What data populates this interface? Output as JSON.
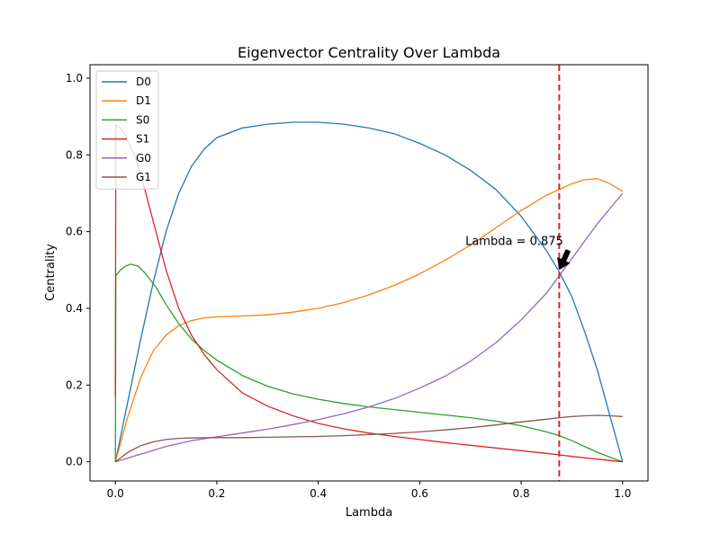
{
  "chart_data": {
    "type": "line",
    "title": "Eigenvector Centrality Over Lambda",
    "xlabel": "Lambda",
    "ylabel": "Centrality",
    "xlim": [
      -0.05,
      1.05
    ],
    "ylim": [
      -0.05,
      1.035
    ],
    "x_ticks": [
      0.0,
      0.2,
      0.4,
      0.6,
      0.8,
      1.0
    ],
    "x_tick_labels": [
      "0.0",
      "0.2",
      "0.4",
      "0.6",
      "0.8",
      "1.0"
    ],
    "y_ticks": [
      0.0,
      0.2,
      0.4,
      0.6,
      0.8,
      1.0
    ],
    "y_tick_labels": [
      "0.0",
      "0.2",
      "0.4",
      "0.6",
      "0.8",
      "1.0"
    ],
    "grid": false,
    "legend_position": "top-left",
    "vline": {
      "x": 0.875,
      "color": "#d62728",
      "style": "dashed"
    },
    "annotation": {
      "text": "Lambda = 0.875",
      "x": 0.875,
      "y": 0.5,
      "text_x": 0.69,
      "text_y": 0.575
    },
    "series": [
      {
        "name": "D0",
        "color": "#1f77b4",
        "x": [
          0,
          0.025,
          0.05,
          0.075,
          0.1,
          0.125,
          0.15,
          0.175,
          0.2,
          0.25,
          0.3,
          0.35,
          0.4,
          0.45,
          0.5,
          0.55,
          0.6,
          0.65,
          0.7,
          0.75,
          0.8,
          0.85,
          0.875,
          0.9,
          0.925,
          0.95,
          0.975,
          1.0
        ],
        "values": [
          0.0,
          0.16,
          0.32,
          0.47,
          0.6,
          0.7,
          0.77,
          0.815,
          0.845,
          0.87,
          0.88,
          0.885,
          0.885,
          0.88,
          0.87,
          0.855,
          0.83,
          0.8,
          0.76,
          0.71,
          0.64,
          0.55,
          0.495,
          0.43,
          0.34,
          0.24,
          0.12,
          0.0
        ]
      },
      {
        "name": "D1",
        "color": "#ff7f0e",
        "x": [
          0,
          0.025,
          0.05,
          0.075,
          0.1,
          0.125,
          0.15,
          0.175,
          0.2,
          0.25,
          0.3,
          0.35,
          0.4,
          0.45,
          0.5,
          0.55,
          0.6,
          0.65,
          0.7,
          0.75,
          0.8,
          0.85,
          0.875,
          0.9,
          0.925,
          0.95,
          0.975,
          1.0
        ],
        "values": [
          0.0,
          0.12,
          0.22,
          0.29,
          0.33,
          0.355,
          0.368,
          0.375,
          0.378,
          0.38,
          0.383,
          0.39,
          0.4,
          0.415,
          0.435,
          0.46,
          0.49,
          0.525,
          0.565,
          0.61,
          0.655,
          0.695,
          0.71,
          0.725,
          0.735,
          0.738,
          0.725,
          0.705
        ]
      },
      {
        "name": "S0",
        "color": "#2ca02c",
        "x": [
          0,
          0.001,
          0.01,
          0.02,
          0.03,
          0.045,
          0.06,
          0.08,
          0.1,
          0.125,
          0.15,
          0.175,
          0.2,
          0.25,
          0.3,
          0.35,
          0.4,
          0.45,
          0.5,
          0.55,
          0.6,
          0.65,
          0.7,
          0.75,
          0.8,
          0.85,
          0.875,
          0.9,
          0.925,
          0.95,
          0.975,
          1.0
        ],
        "values": [
          0.0,
          0.485,
          0.5,
          0.51,
          0.515,
          0.51,
          0.49,
          0.455,
          0.41,
          0.36,
          0.32,
          0.29,
          0.265,
          0.225,
          0.197,
          0.177,
          0.163,
          0.152,
          0.143,
          0.136,
          0.129,
          0.122,
          0.115,
          0.106,
          0.094,
          0.078,
          0.068,
          0.055,
          0.04,
          0.025,
          0.012,
          0.0
        ]
      },
      {
        "name": "S1",
        "color": "#d62728",
        "x": [
          0,
          0.001,
          0.002,
          0.01,
          0.02,
          0.04,
          0.06,
          0.08,
          0.1,
          0.125,
          0.15,
          0.175,
          0.2,
          0.25,
          0.3,
          0.35,
          0.4,
          0.45,
          0.5,
          0.55,
          0.6,
          0.65,
          0.7,
          0.75,
          0.8,
          0.85,
          0.875,
          0.9,
          0.95,
          1.0
        ],
        "values": [
          0.17,
          0.88,
          0.878,
          0.87,
          0.85,
          0.79,
          0.7,
          0.6,
          0.5,
          0.4,
          0.33,
          0.28,
          0.24,
          0.18,
          0.145,
          0.12,
          0.1,
          0.086,
          0.075,
          0.066,
          0.058,
          0.05,
          0.043,
          0.036,
          0.029,
          0.022,
          0.018,
          0.014,
          0.007,
          0.0
        ]
      },
      {
        "name": "G0",
        "color": "#9467bd",
        "x": [
          0,
          0.05,
          0.1,
          0.15,
          0.2,
          0.25,
          0.3,
          0.35,
          0.4,
          0.45,
          0.5,
          0.55,
          0.6,
          0.65,
          0.7,
          0.75,
          0.8,
          0.85,
          0.875,
          0.9,
          0.925,
          0.95,
          0.975,
          1.0
        ],
        "values": [
          0.0,
          0.02,
          0.04,
          0.055,
          0.065,
          0.075,
          0.085,
          0.097,
          0.11,
          0.125,
          0.143,
          0.165,
          0.192,
          0.223,
          0.262,
          0.31,
          0.37,
          0.44,
          0.485,
          0.53,
          0.575,
          0.62,
          0.66,
          0.7
        ]
      },
      {
        "name": "G1",
        "color": "#8c564b",
        "x": [
          0,
          0.025,
          0.05,
          0.075,
          0.1,
          0.125,
          0.15,
          0.2,
          0.25,
          0.3,
          0.35,
          0.4,
          0.45,
          0.5,
          0.55,
          0.6,
          0.65,
          0.7,
          0.75,
          0.8,
          0.85,
          0.875,
          0.9,
          0.925,
          0.95,
          0.975,
          1.0
        ],
        "values": [
          0.0,
          0.025,
          0.042,
          0.052,
          0.058,
          0.061,
          0.062,
          0.063,
          0.063,
          0.064,
          0.065,
          0.066,
          0.068,
          0.071,
          0.074,
          0.078,
          0.083,
          0.089,
          0.096,
          0.104,
          0.111,
          0.115,
          0.118,
          0.12,
          0.121,
          0.12,
          0.118
        ]
      }
    ]
  }
}
